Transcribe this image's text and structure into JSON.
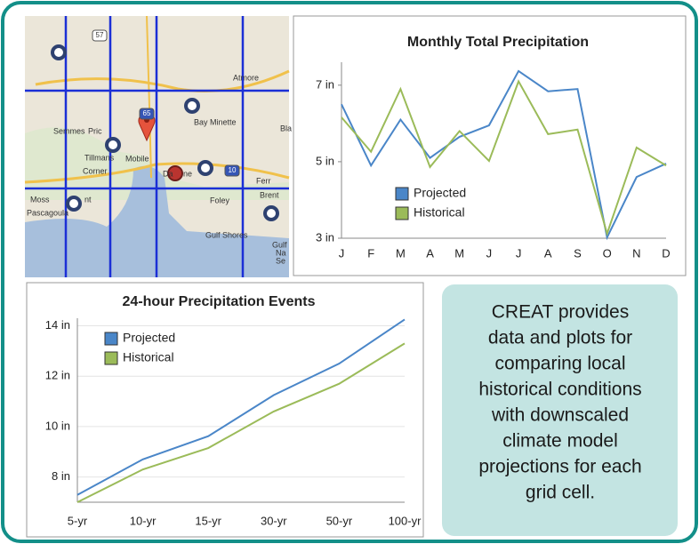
{
  "map": {
    "places": [
      "Atmore",
      "Bay Minette",
      "Semmes",
      "Pric",
      "Mobile",
      "Tillmans",
      "Corner",
      "Da",
      "ne",
      "Foley",
      "Moss",
      "nt",
      "Pascagoula",
      "Gulf Shores",
      "Brent",
      "Ferr",
      "Bla",
      "Gulf",
      "Na",
      "Se"
    ],
    "shields": [
      "57",
      "65",
      "10"
    ]
  },
  "chart_data": [
    {
      "type": "line",
      "title": "Monthly Total Precipitation",
      "categories": [
        "J",
        "F",
        "M",
        "A",
        "M",
        "J",
        "J",
        "A",
        "S",
        "O",
        "N",
        "D"
      ],
      "series": [
        {
          "name": "Projected",
          "color": "#4a86c8",
          "values": [
            6.5,
            4.9,
            6.1,
            5.1,
            5.65,
            5.95,
            7.37,
            6.84,
            6.9,
            3.02,
            4.6,
            4.95
          ]
        },
        {
          "name": "Historical",
          "color": "#9bbb59",
          "values": [
            6.16,
            5.26,
            6.9,
            4.86,
            5.8,
            5.02,
            7.1,
            5.72,
            5.84,
            3.12,
            5.37,
            4.9
          ]
        }
      ],
      "ylim": [
        3,
        7.6
      ],
      "yticks": [
        {
          "value": 3,
          "label": "3 in"
        },
        {
          "value": 5,
          "label": "5 in"
        },
        {
          "value": 7,
          "label": "7 in"
        }
      ],
      "grid": false
    },
    {
      "type": "line",
      "title": "24-hour Precipitation Events",
      "categories": [
        "5-yr",
        "10-yr",
        "15-yr",
        "30-yr",
        "50-yr",
        "100-yr"
      ],
      "series": [
        {
          "name": "Projected",
          "color": "#4a86c8",
          "values": [
            7.29,
            8.7,
            9.62,
            11.25,
            12.5,
            14.25
          ]
        },
        {
          "name": "Historical",
          "color": "#9bbb59",
          "values": [
            7.0,
            8.3,
            9.15,
            10.6,
            11.7,
            13.3
          ]
        }
      ],
      "ylim": [
        7,
        14.3
      ],
      "yticks": [
        {
          "value": 8,
          "label": "8 in"
        },
        {
          "value": 10,
          "label": "10 in"
        },
        {
          "value": 12,
          "label": "12 in"
        },
        {
          "value": 14,
          "label": "14 in"
        }
      ],
      "grid": true
    }
  ],
  "caption": [
    "CREAT provides",
    "data and plots for",
    "comparing local",
    "historical conditions",
    "with downscaled",
    "climate model",
    "projections for each",
    "grid cell."
  ]
}
